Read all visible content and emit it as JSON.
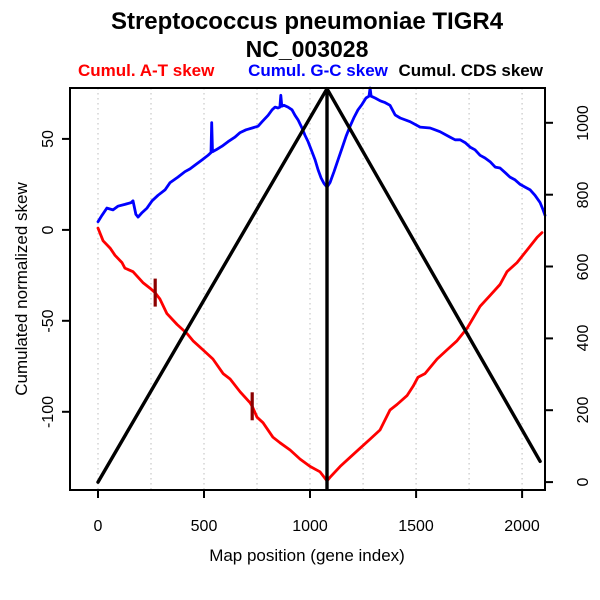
{
  "title": {
    "line1": "Streptococcus pneumoniae TIGR4",
    "line2": "NC_003028"
  },
  "legend": [
    {
      "label": "Cumul. A-T skew",
      "color": "#ff0000"
    },
    {
      "label": "Cumul. G-C skew",
      "color": "#0000ff"
    },
    {
      "label": "Cumul. CDS skew",
      "color": "#000000"
    }
  ],
  "axes": {
    "x_label": "Map position (gene index)",
    "y_left_label": "Cumulated normalized skew",
    "x_ticks": [
      0,
      500,
      1000,
      1500,
      2000
    ],
    "y_left_ticks": [
      50,
      0,
      -50,
      -100
    ],
    "y_right_ticks": [
      0,
      200,
      400,
      600,
      800,
      1000
    ]
  },
  "chart_data": {
    "type": "line",
    "title": "Streptococcus pneumoniae TIGR4 NC_003028",
    "xlabel": "Map position (gene index)",
    "ylabel_left": "Cumulated normalized skew",
    "x_domain": [
      -132,
      2108
    ],
    "y_left_domain": [
      -143,
      78
    ],
    "y_right_domain": [
      -22,
      1097
    ],
    "x_ticks": [
      0,
      500,
      1000,
      1500,
      2000
    ],
    "x_gridlines": [
      0,
      250,
      500,
      750,
      1000,
      1250,
      1500,
      1750,
      2000
    ],
    "grid_color": "#cfcfcf",
    "y_left_ticks": [
      50,
      0,
      -50,
      -100
    ],
    "y_right_ticks": [
      0,
      200,
      400,
      600,
      800,
      1000
    ],
    "vline_x": 1080,
    "marker_color": "#8b0000",
    "markers": [
      {
        "x": 270,
        "y": -34.5
      },
      {
        "x": 727,
        "y": -97
      }
    ],
    "series": [
      {
        "name": "Cumul. A-T skew",
        "color": "#ff0000",
        "axis": "left",
        "points": [
          [
            0,
            1
          ],
          [
            24,
            -6
          ],
          [
            57,
            -10
          ],
          [
            80,
            -14
          ],
          [
            113,
            -18
          ],
          [
            127,
            -21
          ],
          [
            165,
            -23
          ],
          [
            212,
            -29
          ],
          [
            245,
            -32
          ],
          [
            269,
            -34.5
          ],
          [
            292,
            -38
          ],
          [
            325,
            -46
          ],
          [
            373,
            -52
          ],
          [
            420,
            -57
          ],
          [
            448,
            -61
          ],
          [
            495,
            -66
          ],
          [
            542,
            -71
          ],
          [
            590,
            -79
          ],
          [
            623,
            -82
          ],
          [
            670,
            -89
          ],
          [
            717,
            -95
          ],
          [
            727,
            -97
          ],
          [
            750,
            -103
          ],
          [
            778,
            -106
          ],
          [
            825,
            -114
          ],
          [
            858,
            -117
          ],
          [
            906,
            -121
          ],
          [
            953,
            -126
          ],
          [
            1000,
            -130
          ],
          [
            1047,
            -133
          ],
          [
            1080,
            -138
          ],
          [
            1094,
            -136
          ],
          [
            1142,
            -130
          ],
          [
            1189,
            -125
          ],
          [
            1236,
            -120
          ],
          [
            1283,
            -115
          ],
          [
            1330,
            -110
          ],
          [
            1377,
            -99
          ],
          [
            1410,
            -96
          ],
          [
            1458,
            -91
          ],
          [
            1486,
            -86
          ],
          [
            1509,
            -81
          ],
          [
            1542,
            -79
          ],
          [
            1599,
            -71
          ],
          [
            1646,
            -66
          ],
          [
            1693,
            -61
          ],
          [
            1741,
            -54
          ],
          [
            1802,
            -42
          ],
          [
            1849,
            -36
          ],
          [
            1896,
            -30
          ],
          [
            1929,
            -23
          ],
          [
            1976,
            -18
          ],
          [
            2024,
            -11
          ],
          [
            2071,
            -4
          ],
          [
            2094,
            -1.5
          ]
        ]
      },
      {
        "name": "Cumul. G-C skew",
        "color": "#0000ff",
        "axis": "left",
        "points": [
          [
            0,
            4.5
          ],
          [
            19,
            8
          ],
          [
            42,
            12
          ],
          [
            71,
            11
          ],
          [
            94,
            13
          ],
          [
            127,
            14
          ],
          [
            156,
            15
          ],
          [
            165,
            16
          ],
          [
            179,
            8.5
          ],
          [
            189,
            7
          ],
          [
            208,
            9.5
          ],
          [
            231,
            12
          ],
          [
            255,
            16
          ],
          [
            283,
            19
          ],
          [
            316,
            22
          ],
          [
            340,
            26
          ],
          [
            377,
            29
          ],
          [
            410,
            32
          ],
          [
            434,
            33.5
          ],
          [
            462,
            36
          ],
          [
            491,
            38.5
          ],
          [
            519,
            41
          ],
          [
            533,
            42.5
          ],
          [
            536,
            59
          ],
          [
            540,
            43
          ],
          [
            557,
            44
          ],
          [
            585,
            46
          ],
          [
            613,
            48.5
          ],
          [
            646,
            51
          ],
          [
            670,
            53.5
          ],
          [
            698,
            55
          ],
          [
            727,
            56
          ],
          [
            755,
            57
          ],
          [
            774,
            59.5
          ],
          [
            802,
            63
          ],
          [
            821,
            66
          ],
          [
            835,
            67.5
          ],
          [
            849,
            67
          ],
          [
            858,
            67.5
          ],
          [
            862,
            74
          ],
          [
            867,
            68
          ],
          [
            877,
            68.5
          ],
          [
            896,
            67.5
          ],
          [
            915,
            66
          ],
          [
            929,
            63
          ],
          [
            943,
            60.5
          ],
          [
            962,
            56
          ],
          [
            976,
            52
          ],
          [
            991,
            48.5
          ],
          [
            1009,
            43
          ],
          [
            1024,
            38.5
          ],
          [
            1038,
            33
          ],
          [
            1052,
            28.5
          ],
          [
            1066,
            25.5
          ],
          [
            1080,
            23.5
          ],
          [
            1094,
            26
          ],
          [
            1113,
            32
          ],
          [
            1132,
            38.5
          ],
          [
            1151,
            45
          ],
          [
            1170,
            51.5
          ],
          [
            1189,
            57
          ],
          [
            1208,
            62
          ],
          [
            1226,
            66
          ],
          [
            1245,
            69
          ],
          [
            1264,
            72.5
          ],
          [
            1278,
            73.5
          ],
          [
            1283,
            78
          ],
          [
            1288,
            73.5
          ],
          [
            1307,
            72.5
          ],
          [
            1330,
            71
          ],
          [
            1354,
            70
          ],
          [
            1377,
            68.5
          ],
          [
            1401,
            63.2
          ],
          [
            1425,
            61.5
          ],
          [
            1472,
            59.5
          ],
          [
            1519,
            56.5
          ],
          [
            1566,
            56
          ],
          [
            1613,
            54
          ],
          [
            1660,
            51
          ],
          [
            1684,
            49.5
          ],
          [
            1708,
            49.5
          ],
          [
            1731,
            48
          ],
          [
            1755,
            45.5
          ],
          [
            1778,
            44
          ],
          [
            1802,
            41
          ],
          [
            1825,
            39.5
          ],
          [
            1849,
            37.5
          ],
          [
            1873,
            34.5
          ],
          [
            1896,
            34
          ],
          [
            1920,
            31.5
          ],
          [
            1943,
            29
          ],
          [
            1967,
            27.5
          ],
          [
            1991,
            25
          ],
          [
            2014,
            23.5
          ],
          [
            2038,
            22
          ],
          [
            2061,
            19
          ],
          [
            2085,
            15
          ],
          [
            2099,
            11
          ],
          [
            2108,
            8
          ]
        ]
      },
      {
        "name": "Cumul. CDS skew",
        "color": "#000000",
        "axis": "right",
        "points": [
          [
            0,
            0
          ],
          [
            1080,
            1095
          ],
          [
            2085,
            58
          ]
        ]
      }
    ]
  }
}
